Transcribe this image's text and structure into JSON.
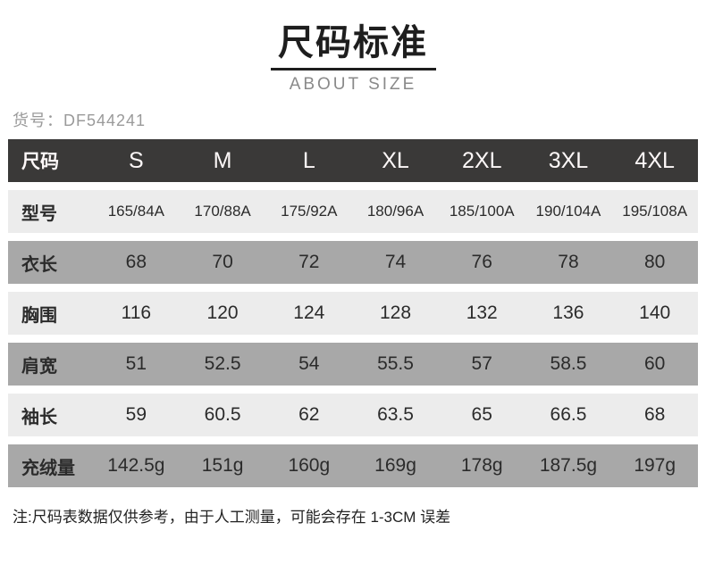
{
  "header": {
    "title": "尺码标准",
    "subtitle": "ABOUT SIZE"
  },
  "product": {
    "label": "货号：",
    "code": "DF544241"
  },
  "size_table": {
    "columns": [
      "尺码",
      "S",
      "M",
      "L",
      "XL",
      "2XL",
      "3XL",
      "4XL"
    ],
    "rows": [
      {
        "label": "型号",
        "values": [
          "165/84A",
          "170/88A",
          "175/92A",
          "180/96A",
          "185/100A",
          "190/104A",
          "195/108A"
        ]
      },
      {
        "label": "衣长",
        "values": [
          "68",
          "70",
          "72",
          "74",
          "76",
          "78",
          "80"
        ]
      },
      {
        "label": "胸围",
        "values": [
          "116",
          "120",
          "124",
          "128",
          "132",
          "136",
          "140"
        ]
      },
      {
        "label": "肩宽",
        "values": [
          "51",
          "52.5",
          "54",
          "55.5",
          "57",
          "58.5",
          "60"
        ]
      },
      {
        "label": "袖长",
        "values": [
          "59",
          "60.5",
          "62",
          "63.5",
          "65",
          "66.5",
          "68"
        ]
      },
      {
        "label": "充绒量",
        "values": [
          "142.5g",
          "151g",
          "160g",
          "169g",
          "178g",
          "187.5g",
          "197g"
        ]
      }
    ]
  },
  "note": "注:尺码表数据仅供参考，由于人工测量，可能会存在 1-3CM 误差",
  "colors": {
    "header_row_bg": "#3a3938",
    "row_light_bg": "#ececec",
    "row_gray_bg": "#a8a8a8",
    "title_text": "#1e1e1e",
    "muted_text": "#9a9a9a",
    "body_text": "#2b2b2b"
  }
}
